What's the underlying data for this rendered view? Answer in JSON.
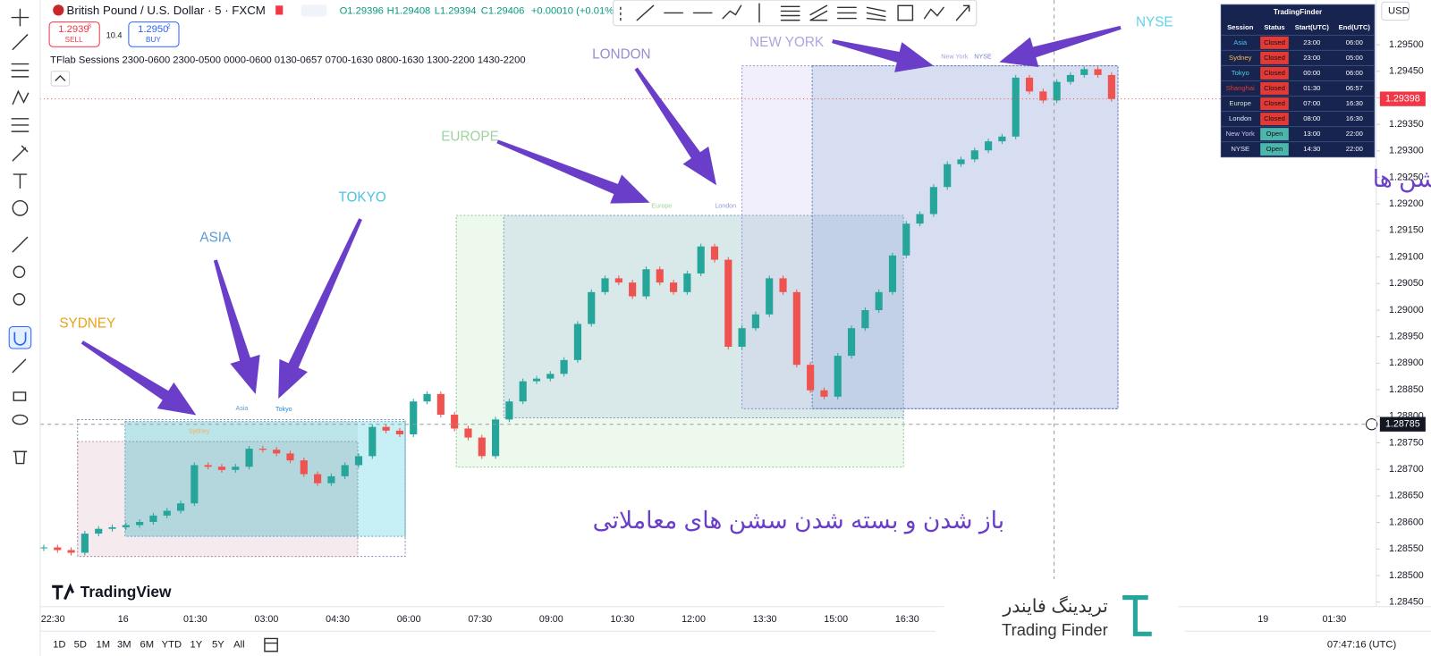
{
  "header": {
    "symbol": "British Pound / U.S. Dollar · 5 · FXCM",
    "open": "O1.29396",
    "high": "H1.29408",
    "low": "L1.29394",
    "close": "C1.29406",
    "change": "+0.00010 (+0.01%)"
  },
  "trade": {
    "sell_price": "1.2939",
    "sell_pip": "8",
    "sell": "SELL",
    "spread": "10.4",
    "buy_price": "1.2950",
    "buy_pip": "2",
    "buy": "BUY"
  },
  "indicator": "TFlab Sessions 2300-0600 2300-0500 0000-0600 0130-0657 0700-1630 0800-1630 1300-2200 1430-2200",
  "currency": "USD",
  "chart": {
    "ylim": [
      1.28414,
      1.29584
    ],
    "yticks": [
      {
        "value": 1.295,
        "label": "1.29500"
      },
      {
        "value": 1.2945,
        "label": "1.29450"
      },
      {
        "value": 1.294,
        "label": "1.29400"
      },
      {
        "value": 1.2935,
        "label": "1.29350"
      },
      {
        "value": 1.293,
        "label": "1.29300"
      },
      {
        "value": 1.2925,
        "label": "1.29250"
      },
      {
        "value": 1.292,
        "label": "1.29200"
      },
      {
        "value": 1.2915,
        "label": "1.29150"
      },
      {
        "value": 1.291,
        "label": "1.29100"
      },
      {
        "value": 1.2905,
        "label": "1.29050"
      },
      {
        "value": 1.29,
        "label": "1.29000"
      },
      {
        "value": 1.2895,
        "label": "1.28950"
      },
      {
        "value": 1.289,
        "label": "1.28900"
      },
      {
        "value": 1.2885,
        "label": "1.28850"
      },
      {
        "value": 1.288,
        "label": "1.28800"
      },
      {
        "value": 1.2875,
        "label": "1.28750"
      },
      {
        "value": 1.287,
        "label": "1.28700"
      },
      {
        "value": 1.2865,
        "label": "1.28650"
      },
      {
        "value": 1.286,
        "label": "1.28600"
      },
      {
        "value": 1.2855,
        "label": "1.28550"
      },
      {
        "value": 1.285,
        "label": "1.28500"
      },
      {
        "value": 1.2845,
        "label": "1.28450"
      }
    ],
    "closes": [
      1.28553,
      1.28548,
      1.28543,
      1.28579,
      1.28588,
      1.28591,
      1.28595,
      1.28601,
      1.28613,
      1.28622,
      1.28636,
      1.28708,
      1.28705,
      1.28699,
      1.28705,
      1.28739,
      1.28737,
      1.2873,
      1.28717,
      1.28691,
      1.28674,
      1.28687,
      1.28708,
      1.28725,
      1.2878,
      1.28773,
      1.28766,
      1.28828,
      1.28842,
      1.28803,
      1.28777,
      1.2876,
      1.28725,
      1.28794,
      1.28828,
      1.28866,
      1.28871,
      1.2888,
      1.28906,
      1.28974,
      1.29034,
      1.2906,
      1.29052,
      1.29026,
      1.29077,
      1.29052,
      1.29034,
      1.29069,
      1.2912,
      1.29095,
      1.28931,
      1.28966,
      1.28992,
      1.2906,
      1.29034,
      1.28897,
      1.28849,
      1.28837,
      1.28914,
      1.28966,
      1.29,
      1.29034,
      1.29103,
      1.29163,
      1.29181,
      1.29232,
      1.29275,
      1.29284,
      1.29301,
      1.29318,
      1.29327,
      1.29438,
      1.29412,
      1.29395,
      1.2943,
      1.29443,
      1.29454,
      1.29443,
      1.29398
    ],
    "up_color": "#26a69a",
    "down_color": "#ef5350",
    "last_price": {
      "value": 1.29398,
      "label": "1.29398"
    },
    "cross_price": {
      "value": 1.28785,
      "label": "1.28785"
    },
    "time_labels": [
      "22:30",
      "16",
      "01:30",
      "03:00",
      "04:30",
      "06:00",
      "07:30",
      "09:00",
      "10:30",
      "12:00",
      "13:30",
      "15:00",
      "16:30",
      "19",
      "01:30"
    ]
  },
  "annotations": [
    {
      "text": "SYDNEY",
      "color": "#e8a317"
    },
    {
      "text": "ASIA",
      "color": "#5b9bd5"
    },
    {
      "text": "TOKYO",
      "color": "#4cc3df"
    },
    {
      "text": "EUROPE",
      "color": "#9ed39f"
    },
    {
      "text": "LONDON",
      "color": "#9a8cd0"
    },
    {
      "text": "NEW YORK",
      "color": "#b0a4e0"
    },
    {
      "text": "NYSE",
      "color": "#5fd3e8"
    }
  ],
  "session_labels": [
    {
      "text": "Sydney",
      "color": "#f0b060"
    },
    {
      "text": "Asia",
      "color": "#5b9bd5"
    },
    {
      "text": "Tokyo",
      "color": "#1e88e5"
    },
    {
      "text": "Europe",
      "color": "#9ed39f"
    },
    {
      "text": "London",
      "color": "#8f9bd0"
    },
    {
      "text": "New York",
      "color": "#b39ddb"
    },
    {
      "text": "NYSE",
      "color": "#7986cb"
    }
  ],
  "notes": {
    "panel": "پنل زمانی سشن ها",
    "sessions": "باز شدن و بسته شدن سشن های معاملاتی"
  },
  "table": {
    "title": "TradingFinder",
    "columns": [
      "Session",
      "Status",
      "Start(UTC)",
      "End(UTC)"
    ],
    "rows": [
      {
        "session": "Asia",
        "color": "#4fc3f7",
        "status": "Closed",
        "start": "23:00",
        "end": "06:00"
      },
      {
        "session": "Sydney",
        "color": "#ffb74d",
        "status": "Closed",
        "start": "23:00",
        "end": "05:00"
      },
      {
        "session": "Tokyo",
        "color": "#4dd0e1",
        "status": "Closed",
        "start": "00:00",
        "end": "06:00"
      },
      {
        "session": "Shanghai",
        "color": "#e53935",
        "status": "Closed",
        "start": "01:30",
        "end": "06:57"
      },
      {
        "session": "Europe",
        "color": "#c8e6c9",
        "status": "Closed",
        "start": "07:00",
        "end": "16:30"
      },
      {
        "session": "London",
        "color": "#e3f2fd",
        "status": "Closed",
        "start": "08:00",
        "end": "16:30"
      },
      {
        "session": "New York",
        "color": "#d1c4e9",
        "status": "Open",
        "start": "13:00",
        "end": "22:00"
      },
      {
        "session": "NYSE",
        "color": "#e8eaf6",
        "status": "Open",
        "start": "14:30",
        "end": "22:00"
      }
    ]
  },
  "logos": {
    "tradingview": "TradingView",
    "finder_fa": "تریدینگ فایندر",
    "finder_en": "Trading Finder"
  },
  "bottom_bar": {
    "ranges": [
      "1D",
      "5D",
      "1M",
      "3M",
      "6M",
      "YTD",
      "1Y",
      "5Y",
      "All"
    ],
    "clock": "07:47:16 (UTC)"
  }
}
